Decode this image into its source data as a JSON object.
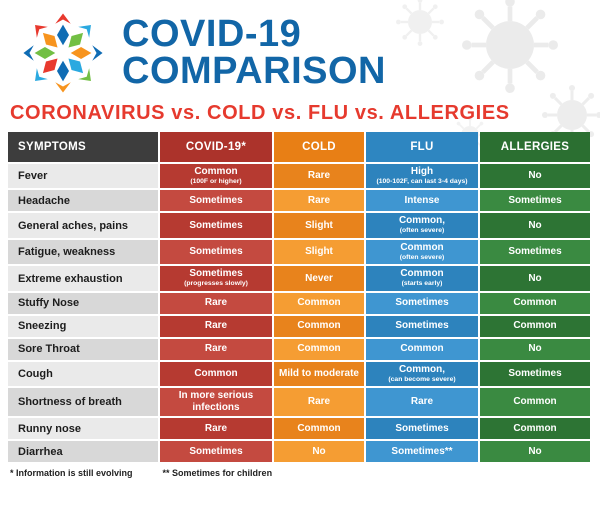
{
  "header": {
    "title_line1": "COVID-19",
    "title_line2": "COMPARISON",
    "subtitle": "CORONAVIRUS vs. COLD vs. FLU vs. ALLERGIES"
  },
  "chart_data": {
    "type": "table",
    "title": "COVID-19 COMPARISON",
    "subtitle": "CORONAVIRUS vs. COLD vs. FLU vs. ALLERGIES",
    "columns": [
      "SYMPTOMS",
      "COVID-19*",
      "COLD",
      "FLU",
      "ALLERGIES"
    ],
    "rows": [
      {
        "symptom": "Fever",
        "covid": [
          "Common",
          "(100F or higher)"
        ],
        "cold": [
          "Rare"
        ],
        "flu": [
          "High",
          "(100-102F, can last 3-4 days)"
        ],
        "allergies": [
          "No"
        ]
      },
      {
        "symptom": "Headache",
        "covid": [
          "Sometimes"
        ],
        "cold": [
          "Rare"
        ],
        "flu": [
          "Intense"
        ],
        "allergies": [
          "Sometimes"
        ]
      },
      {
        "symptom": "General aches, pains",
        "covid": [
          "Sometimes"
        ],
        "cold": [
          "Slight"
        ],
        "flu": [
          "Common,",
          "(often severe)"
        ],
        "allergies": [
          "No"
        ]
      },
      {
        "symptom": "Fatigue, weakness",
        "covid": [
          "Sometimes"
        ],
        "cold": [
          "Slight"
        ],
        "flu": [
          "Common",
          "(often severe)"
        ],
        "allergies": [
          "Sometimes"
        ]
      },
      {
        "symptom": "Extreme exhaustion",
        "covid": [
          "Sometimes",
          "(progresses slowly)"
        ],
        "cold": [
          "Never"
        ],
        "flu": [
          "Common",
          "(starts early)"
        ],
        "allergies": [
          "No"
        ]
      },
      {
        "symptom": "Stuffy Nose",
        "covid": [
          "Rare"
        ],
        "cold": [
          "Common"
        ],
        "flu": [
          "Sometimes"
        ],
        "allergies": [
          "Common"
        ]
      },
      {
        "symptom": "Sneezing",
        "covid": [
          "Rare"
        ],
        "cold": [
          "Common"
        ],
        "flu": [
          "Sometimes"
        ],
        "allergies": [
          "Common"
        ]
      },
      {
        "symptom": "Sore Throat",
        "covid": [
          "Rare"
        ],
        "cold": [
          "Common"
        ],
        "flu": [
          "Common"
        ],
        "allergies": [
          "No"
        ]
      },
      {
        "symptom": "Cough",
        "covid": [
          "Common"
        ],
        "cold": [
          "Mild to moderate"
        ],
        "flu": [
          "Common,",
          "(can become severe)"
        ],
        "allergies": [
          "Sometimes"
        ]
      },
      {
        "symptom": "Shortness of breath",
        "covid": [
          "In more serious infections"
        ],
        "cold": [
          "Rare"
        ],
        "flu": [
          "Rare"
        ],
        "allergies": [
          "Common"
        ]
      },
      {
        "symptom": "Runny nose",
        "covid": [
          "Rare"
        ],
        "cold": [
          "Common"
        ],
        "flu": [
          "Sometimes"
        ],
        "allergies": [
          "Common"
        ]
      },
      {
        "symptom": "Diarrhea",
        "covid": [
          "Sometimes"
        ],
        "cold": [
          "No"
        ],
        "flu": [
          "Sometimes**"
        ],
        "allergies": [
          "No"
        ]
      }
    ]
  },
  "footnotes": {
    "note1": "* Information is still evolving",
    "note2": "** Sometimes for children"
  },
  "colors": {
    "title_blue": "#1266a7",
    "subtitle_red": "#e63a2e",
    "column_headers": {
      "symptom": "#3d3d3d",
      "covid": "#ac332b",
      "cold": "#e87f15",
      "flu": "#2e86c1",
      "allergies": "#2b6f31"
    },
    "row_shades": {
      "symptom": [
        "#eaeaea",
        "#d8d8d8"
      ],
      "covid": [
        "#b63a31",
        "#c44a40"
      ],
      "cold": [
        "#e8831c",
        "#f59d33"
      ],
      "flu": [
        "#2d83bd",
        "#3f96d1"
      ],
      "allergies": [
        "#2d7434",
        "#3a8a41"
      ]
    }
  }
}
